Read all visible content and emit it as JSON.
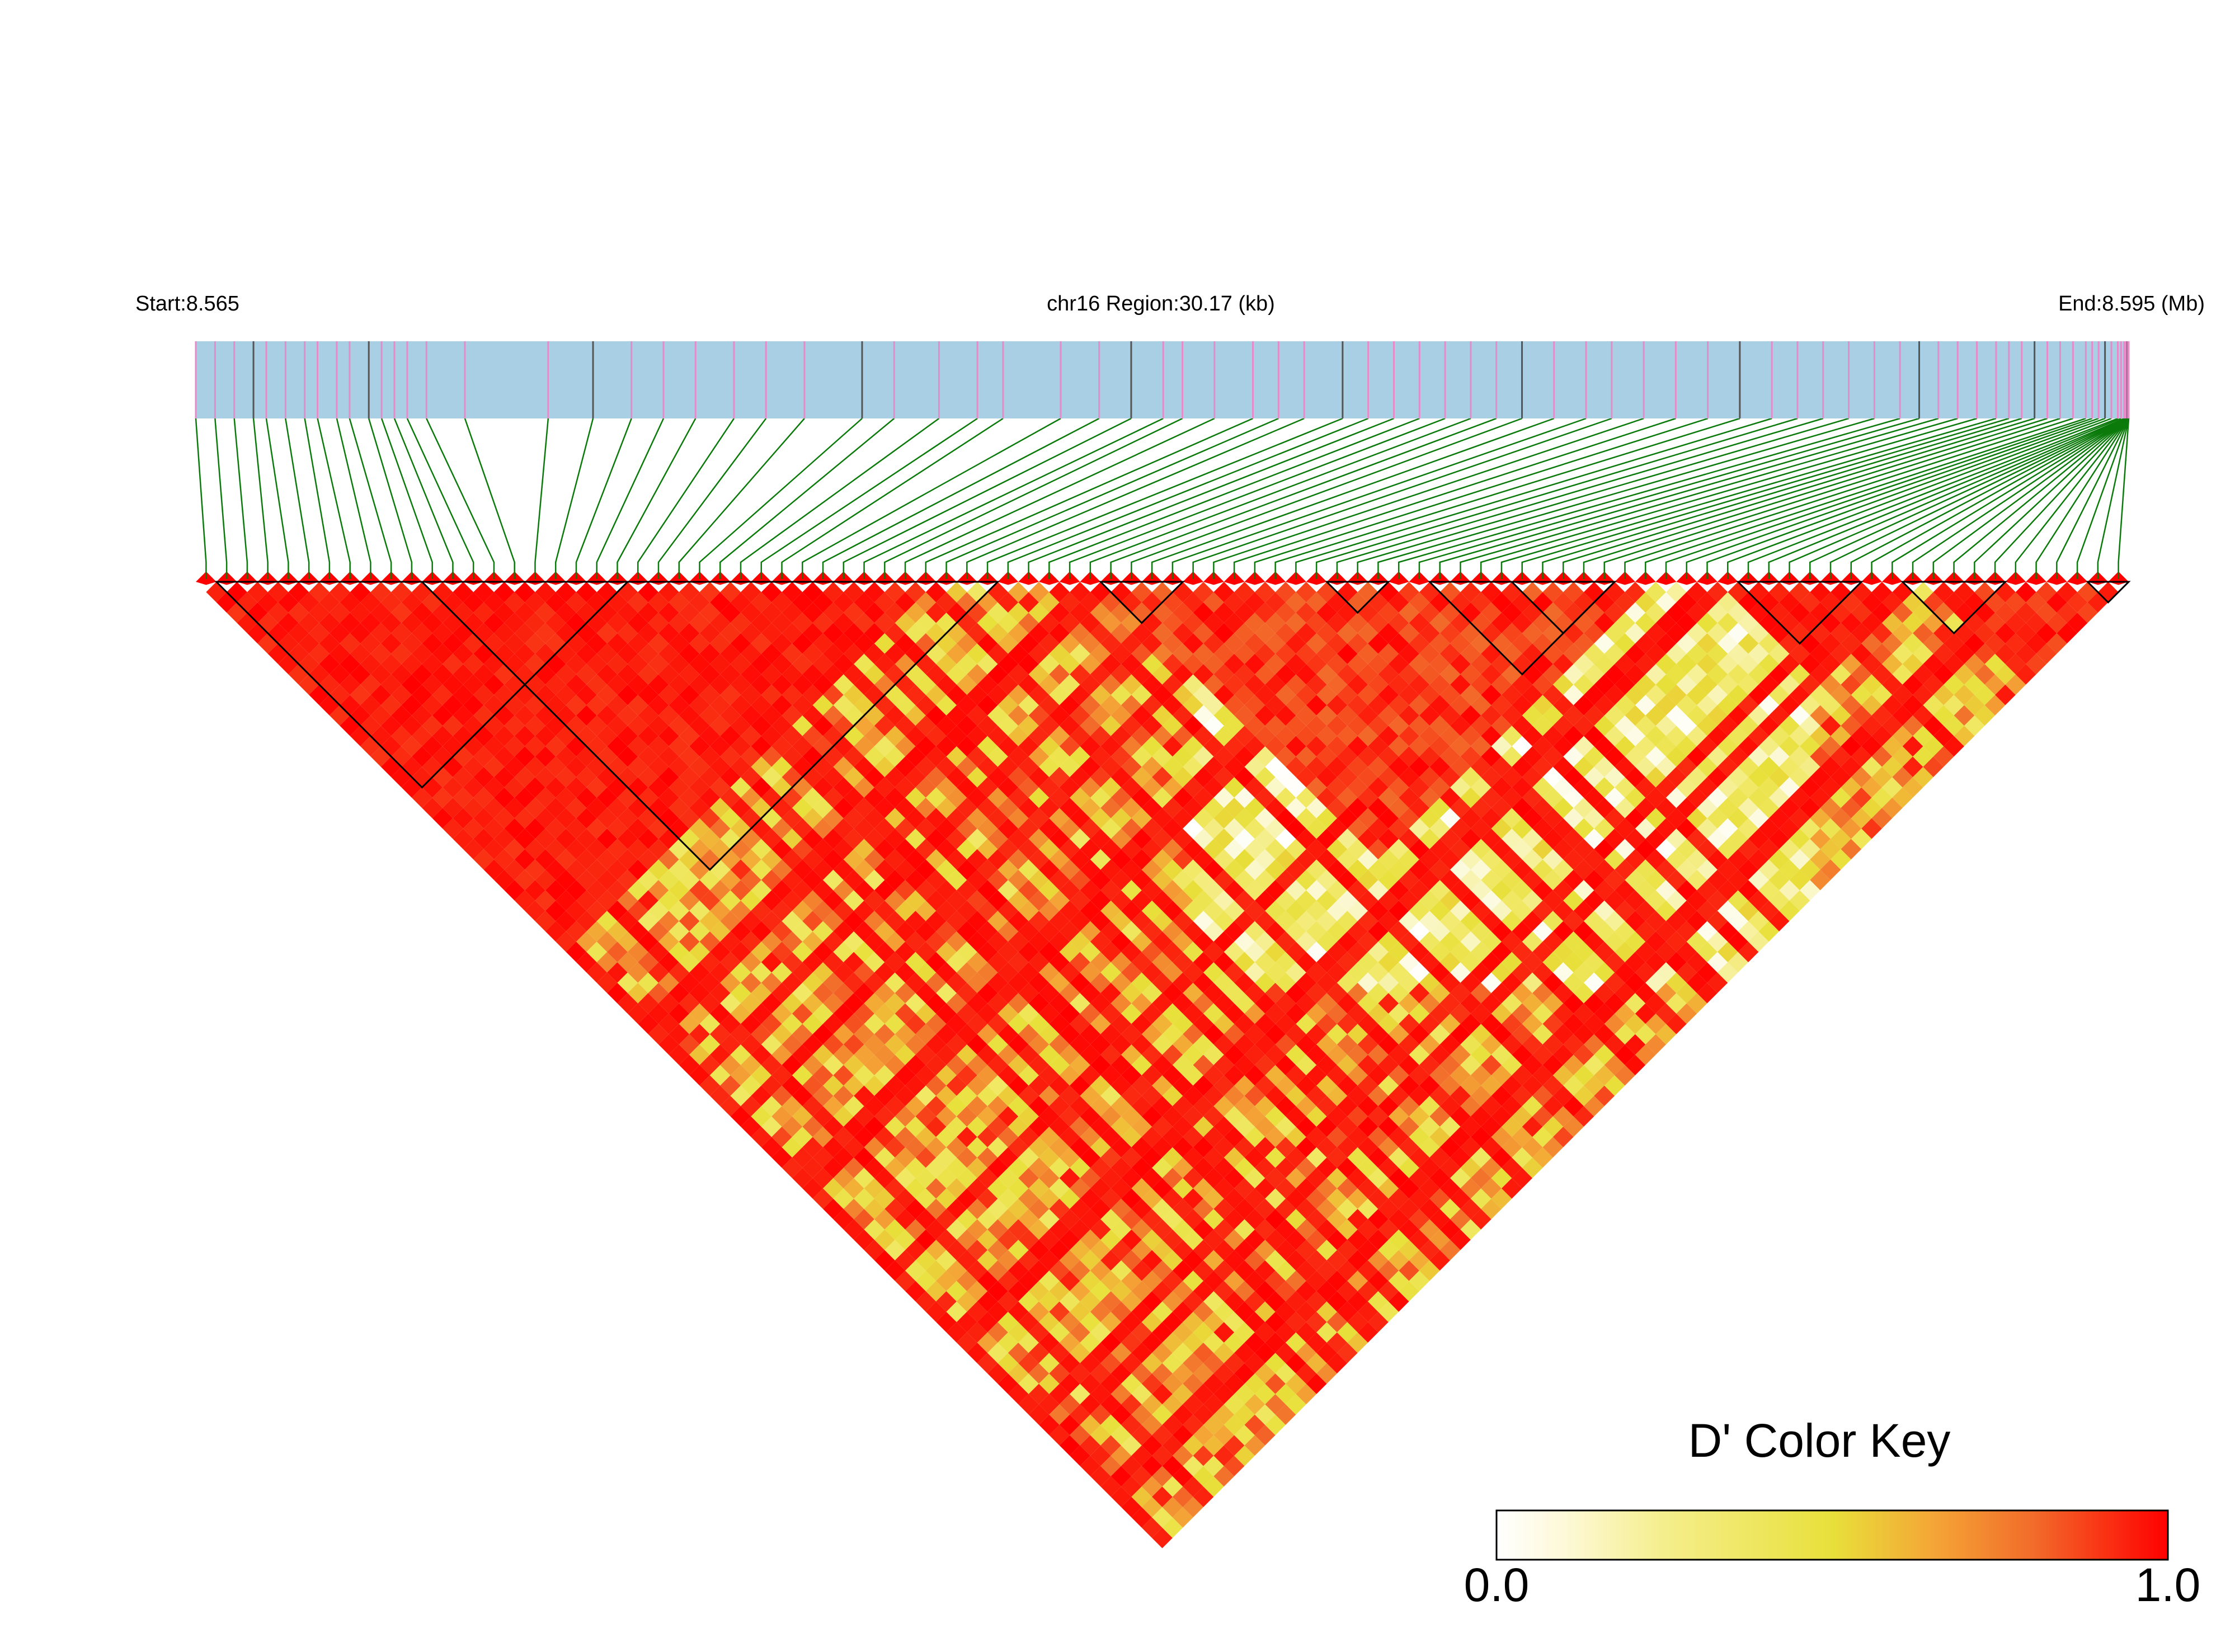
{
  "chart_data": {
    "type": "heatmap",
    "heatmap_kind": "linkage-disequilibrium triangle",
    "region": {
      "chromosome": "chr16",
      "start_label": "Start:8.565",
      "region_label": "chr16 Region:30.17 (kb)",
      "end_label": "End:8.595 (Mb)",
      "start_mb": 8.565,
      "end_mb": 8.595,
      "length_kb": 30.17
    },
    "snp_count": 94,
    "snp_positions_kb": [
      0,
      0.3,
      0.6,
      0.9,
      1.1,
      1.4,
      1.7,
      1.9,
      2.2,
      2.4,
      2.7,
      2.9,
      3.1,
      3.3,
      3.6,
      4.2,
      5.5,
      6.2,
      6.8,
      7.3,
      7.8,
      8.4,
      8.9,
      9.5,
      10.4,
      10.9,
      11.6,
      12.2,
      12.6,
      13.5,
      14.1,
      14.6,
      15.1,
      15.4,
      15.9,
      16.5,
      16.9,
      17.3,
      17.9,
      18.3,
      18.7,
      19.1,
      19.5,
      19.9,
      20.3,
      20.7,
      21.2,
      21.7,
      22.1,
      22.6,
      23.1,
      23.6,
      24.1,
      24.6,
      25.0,
      25.4,
      25.8,
      26.2,
      26.6,
      26.9,
      27.2,
      27.5,
      27.8,
      28.1,
      28.3,
      28.5,
      28.7,
      28.9,
      29.1,
      29.3,
      29.5,
      29.6,
      29.7,
      29.8,
      29.9,
      30.0,
      30.05,
      30.1,
      30.12,
      30.14,
      30.15,
      30.16,
      30.17,
      30.17,
      30.17,
      30.17,
      30.17,
      30.17,
      30.17,
      30.17,
      30.17,
      30.17,
      30.17,
      30.17
    ],
    "haplotype_blocks": [
      {
        "first_snp": 1,
        "last_snp": 20
      },
      {
        "first_snp": 11,
        "last_snp": 38
      },
      {
        "first_snp": 44,
        "last_snp": 47
      },
      {
        "first_snp": 55,
        "last_snp": 57
      },
      {
        "first_snp": 60,
        "last_snp": 68
      },
      {
        "first_snp": 64,
        "last_snp": 68
      },
      {
        "first_snp": 75,
        "last_snp": 80
      },
      {
        "first_snp": 83,
        "last_snp": 87
      },
      {
        "first_snp": 92,
        "last_snp": 93
      }
    ],
    "ld_structure": {
      "measure": "D'",
      "strong_ld_regions": [
        {
          "snp_range": [
            0,
            35
          ],
          "d_prime_min": 0.9
        },
        {
          "snp_range": [
            44,
            70
          ],
          "d_prime_min": 0.8
        },
        {
          "snp_range": [
            74,
            82
          ],
          "d_prime_min": 0.9
        },
        {
          "snp_range": [
            84,
            94
          ],
          "d_prime_min": 0.85
        }
      ],
      "weak_ld_region": {
        "snp_range": [
          48,
          78
        ],
        "d_prime_max": 0.45
      },
      "background_mean_d_prime": 0.55
    },
    "color_key": {
      "title": "D' Color Key",
      "min_label": "0.0",
      "max_label": "1.0",
      "min": 0.0,
      "max": 1.0,
      "colors": [
        "#ffffff",
        "#f2e96b",
        "#e8e03a",
        "#f4a636",
        "#f26b2a",
        "#ff0000"
      ]
    },
    "colors": {
      "chromosome_bar": "#a9cfe4",
      "snp_tick_main": "#e68ac8",
      "snp_tick_alt": "#555555",
      "connector_lines": "#0a7a0a",
      "block_outline": "#000000"
    },
    "legend_placement": "bottom-right"
  }
}
